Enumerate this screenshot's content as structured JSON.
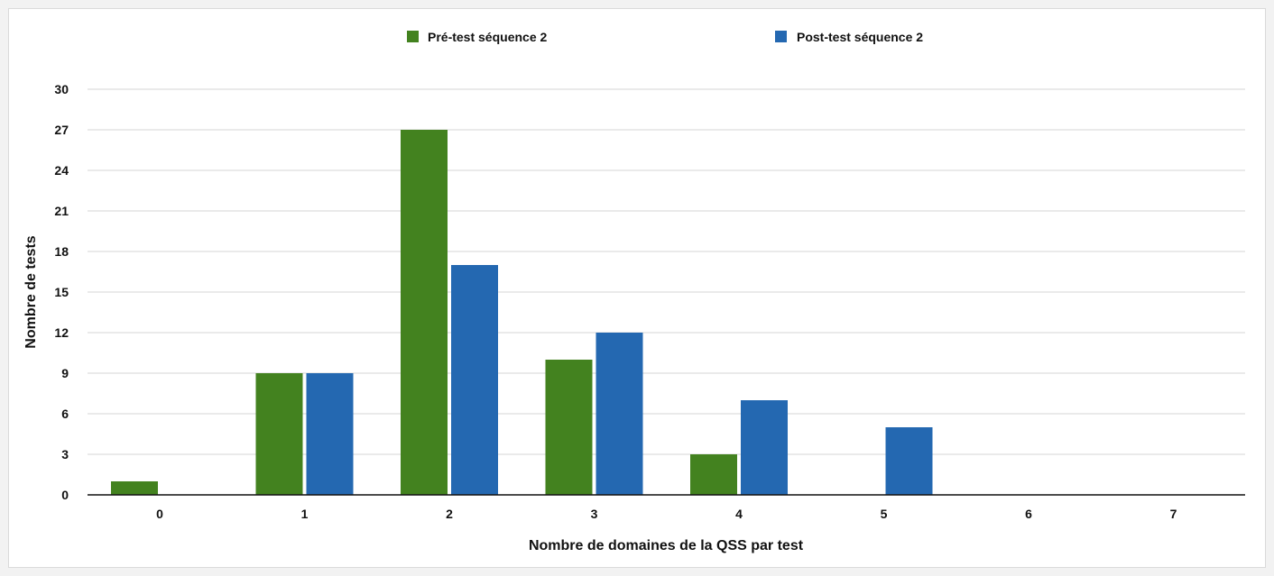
{
  "chart_data": {
    "type": "bar",
    "title": "",
    "xlabel": "Nombre de domaines de la QSS par test",
    "ylabel": "Nombre de tests",
    "categories": [
      "0",
      "1",
      "2",
      "3",
      "4",
      "5",
      "6",
      "7"
    ],
    "series": [
      {
        "name": "Pré-test séquence 2",
        "color": "#43821f",
        "values": [
          1,
          9,
          27,
          10,
          3,
          0,
          0,
          0
        ]
      },
      {
        "name": "Post-test séquence 2",
        "color": "#2468b1",
        "values": [
          0,
          9,
          17,
          12,
          7,
          5,
          0,
          0
        ]
      }
    ],
    "ylim": [
      0,
      30
    ],
    "yticks": [
      0,
      3,
      6,
      9,
      12,
      15,
      18,
      21,
      24,
      27,
      30
    ],
    "grid": true,
    "legend_position": "top-center"
  }
}
